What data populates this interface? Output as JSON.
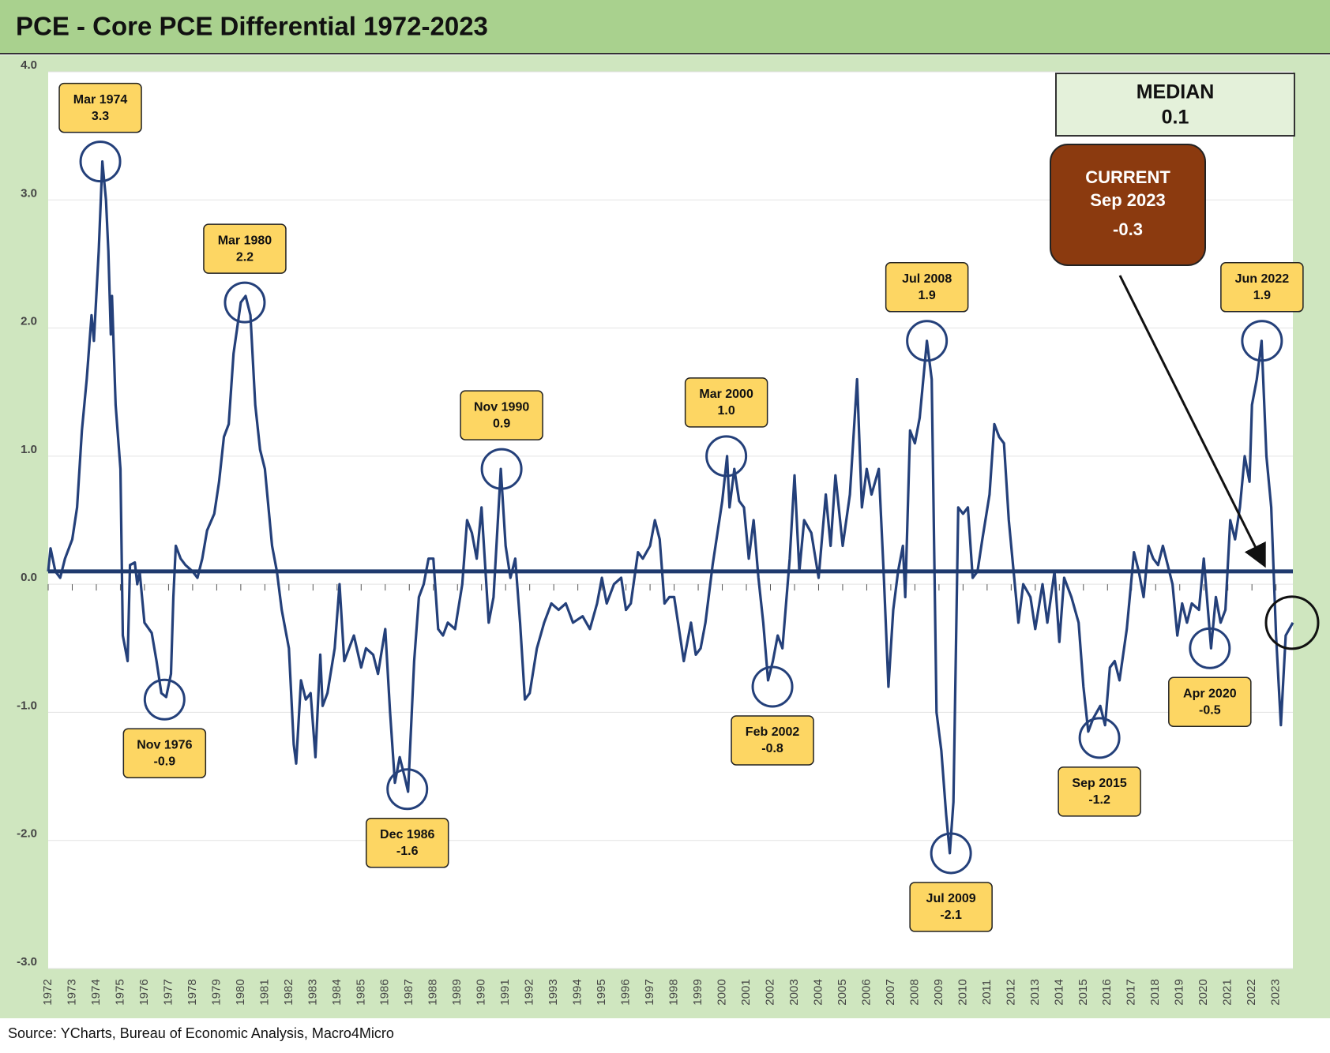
{
  "chart_data": {
    "type": "line",
    "title": "PCE - Core PCE Differential 1972-2023",
    "source": "Source: YCharts, Bureau of Economic Analysis, Macro4Micro",
    "ylim": [
      -3,
      4
    ],
    "yticks": [
      {
        "value": -3,
        "label": "-3.0"
      },
      {
        "value": -2,
        "label": "-2.0"
      },
      {
        "value": -1,
        "label": "-1.0"
      },
      {
        "value": 0,
        "label": "0.0"
      },
      {
        "value": 1,
        "label": "1.0"
      },
      {
        "value": 2,
        "label": "2.0"
      },
      {
        "value": 3,
        "label": "3.0"
      },
      {
        "value": 4,
        "label": "4.0"
      }
    ],
    "xlim": [
      1972,
      2023.7
    ],
    "xticks": [
      1972,
      1973,
      1974,
      1975,
      1976,
      1977,
      1978,
      1979,
      1980,
      1981,
      1982,
      1983,
      1984,
      1985,
      1986,
      1987,
      1988,
      1989,
      1990,
      1991,
      1992,
      1993,
      1994,
      1995,
      1996,
      1997,
      1998,
      1999,
      2000,
      2001,
      2002,
      2003,
      2004,
      2005,
      2006,
      2007,
      2008,
      2009,
      2010,
      2011,
      2012,
      2013,
      2014,
      2015,
      2016,
      2017,
      2018,
      2019,
      2020,
      2021,
      2022,
      2023
    ],
    "grid": true,
    "series": [
      {
        "color": "#24407a",
        "x": [
          1972.0,
          1972.1,
          1972.3,
          1972.5,
          1972.7,
          1973.0,
          1973.2,
          1973.4,
          1973.6,
          1973.8,
          1973.9,
          1974.1,
          1974.25,
          1974.4,
          1974.5,
          1974.6,
          1974.65,
          1974.8,
          1975.0,
          1975.1,
          1975.3,
          1975.4,
          1975.6,
          1975.7,
          1975.8,
          1976.0,
          1976.3,
          1976.5,
          1976.7,
          1976.9,
          1977.1,
          1977.2,
          1977.3,
          1977.5,
          1977.7,
          1978.0,
          1978.2,
          1978.4,
          1978.6,
          1978.9,
          1979.1,
          1979.3,
          1979.5,
          1979.7,
          1980.0,
          1980.2,
          1980.4,
          1980.6,
          1980.8,
          1981.0,
          1981.1,
          1981.3,
          1981.5,
          1981.7,
          1982.0,
          1982.2,
          1982.3,
          1982.5,
          1982.7,
          1982.9,
          1983.1,
          1983.3,
          1983.4,
          1983.6,
          1983.9,
          1984.1,
          1984.3,
          1984.5,
          1984.7,
          1985.0,
          1985.2,
          1985.5,
          1985.7,
          1986.0,
          1986.2,
          1986.4,
          1986.6,
          1986.8,
          1986.95,
          1987.2,
          1987.4,
          1987.6,
          1987.8,
          1988.0,
          1988.2,
          1988.4,
          1988.6,
          1988.9,
          1989.2,
          1989.4,
          1989.6,
          1989.8,
          1990.0,
          1990.3,
          1990.5,
          1990.8,
          1991.0,
          1991.2,
          1991.4,
          1991.6,
          1991.8,
          1992.0,
          1992.3,
          1992.6,
          1992.9,
          1993.2,
          1993.5,
          1993.8,
          1994.2,
          1994.5,
          1994.8,
          1995.0,
          1995.2,
          1995.5,
          1995.8,
          1996.0,
          1996.2,
          1996.5,
          1996.7,
          1997.0,
          1997.2,
          1997.4,
          1997.6,
          1997.8,
          1998.0,
          1998.2,
          1998.4,
          1998.7,
          1998.9,
          1999.1,
          1999.3,
          1999.6,
          1999.8,
          2000.0,
          2000.2,
          2000.3,
          2000.5,
          2000.7,
          2000.9,
          2001.1,
          2001.3,
          2001.5,
          2001.7,
          2001.9,
          2002.1,
          2002.3,
          2002.5,
          2002.8,
          2003.0,
          2003.2,
          2003.4,
          2003.7,
          2004.0,
          2004.3,
          2004.5,
          2004.7,
          2005.0,
          2005.3,
          2005.6,
          2005.8,
          2006.0,
          2006.2,
          2006.5,
          2006.7,
          2006.9,
          2007.1,
          2007.3,
          2007.5,
          2007.6,
          2007.8,
          2008.0,
          2008.2,
          2008.5,
          2008.7,
          2008.9,
          2009.1,
          2009.3,
          2009.45,
          2009.6,
          2009.8,
          2010.0,
          2010.2,
          2010.4,
          2010.6,
          2010.8,
          2011.1,
          2011.3,
          2011.5,
          2011.7,
          2011.9,
          2012.1,
          2012.3,
          2012.5,
          2012.8,
          2013.0,
          2013.3,
          2013.5,
          2013.8,
          2014.0,
          2014.2,
          2014.5,
          2014.8,
          2015.0,
          2015.2,
          2015.4,
          2015.7,
          2015.9,
          2016.1,
          2016.3,
          2016.5,
          2016.8,
          2017.1,
          2017.3,
          2017.5,
          2017.7,
          2017.9,
          2018.1,
          2018.3,
          2018.5,
          2018.7,
          2018.9,
          2019.1,
          2019.3,
          2019.5,
          2019.8,
          2020.0,
          2020.3,
          2020.5,
          2020.7,
          2020.9,
          2021.1,
          2021.3,
          2021.5,
          2021.7,
          2021.9,
          2022.0,
          2022.2,
          2022.4,
          2022.6,
          2022.8,
          2023.0,
          2023.2,
          2023.4,
          2023.7
        ],
        "values": [
          0.1,
          0.28,
          0.1,
          0.05,
          0.2,
          0.35,
          0.6,
          1.2,
          1.6,
          2.1,
          1.9,
          2.6,
          3.3,
          3.0,
          2.6,
          1.95,
          2.25,
          1.4,
          0.9,
          -0.4,
          -0.6,
          0.15,
          0.17,
          0.0,
          0.1,
          -0.3,
          -0.38,
          -0.6,
          -0.85,
          -0.88,
          -0.7,
          -0.1,
          0.3,
          0.2,
          0.15,
          0.1,
          0.05,
          0.2,
          0.42,
          0.55,
          0.8,
          1.15,
          1.25,
          1.8,
          2.2,
          2.25,
          2.1,
          1.4,
          1.05,
          0.9,
          0.7,
          0.3,
          0.1,
          -0.2,
          -0.5,
          -1.25,
          -1.4,
          -0.75,
          -0.9,
          -0.85,
          -1.35,
          -0.55,
          -0.95,
          -0.85,
          -0.5,
          0.0,
          -0.6,
          -0.5,
          -0.4,
          -0.65,
          -0.5,
          -0.55,
          -0.7,
          -0.35,
          -1.0,
          -1.55,
          -1.35,
          -1.5,
          -1.62,
          -0.6,
          -0.1,
          0.0,
          0.2,
          0.2,
          -0.35,
          -0.4,
          -0.3,
          -0.35,
          0.0,
          0.5,
          0.4,
          0.2,
          0.6,
          -0.3,
          -0.1,
          0.9,
          0.3,
          0.05,
          0.2,
          -0.3,
          -0.9,
          -0.85,
          -0.5,
          -0.3,
          -0.15,
          -0.2,
          -0.15,
          -0.3,
          -0.25,
          -0.35,
          -0.15,
          0.05,
          -0.15,
          0.0,
          0.05,
          -0.2,
          -0.15,
          0.25,
          0.2,
          0.3,
          0.5,
          0.35,
          -0.15,
          -0.1,
          -0.1,
          -0.35,
          -0.6,
          -0.3,
          -0.55,
          -0.5,
          -0.3,
          0.15,
          0.4,
          0.65,
          1.0,
          0.6,
          0.9,
          0.65,
          0.6,
          0.2,
          0.5,
          0.05,
          -0.3,
          -0.75,
          -0.6,
          -0.4,
          -0.5,
          0.2,
          0.85,
          0.1,
          0.5,
          0.4,
          0.05,
          0.7,
          0.3,
          0.85,
          0.3,
          0.7,
          1.6,
          0.6,
          0.9,
          0.7,
          0.9,
          0.1,
          -0.8,
          -0.2,
          0.1,
          0.3,
          -0.1,
          1.2,
          1.1,
          1.3,
          1.9,
          1.6,
          -1.0,
          -1.3,
          -1.8,
          -2.1,
          -1.7,
          0.6,
          0.55,
          0.6,
          0.05,
          0.1,
          0.35,
          0.7,
          1.25,
          1.15,
          1.1,
          0.5,
          0.1,
          -0.3,
          0.0,
          -0.1,
          -0.35,
          0.0,
          -0.3,
          0.1,
          -0.45,
          0.05,
          -0.1,
          -0.3,
          -0.8,
          -1.15,
          -1.05,
          -0.95,
          -1.1,
          -0.65,
          -0.6,
          -0.75,
          -0.35,
          0.25,
          0.1,
          -0.1,
          0.3,
          0.2,
          0.15,
          0.3,
          0.15,
          0.0,
          -0.4,
          -0.15,
          -0.3,
          -0.15,
          -0.2,
          0.2,
          -0.5,
          -0.1,
          -0.3,
          -0.2,
          0.5,
          0.35,
          0.6,
          1.0,
          0.8,
          1.4,
          1.6,
          1.9,
          1.0,
          0.6,
          -0.4,
          -1.1,
          -0.4,
          -0.3
        ]
      }
    ],
    "median": {
      "label": "MEDIAN",
      "value": 0.1,
      "color": "#1f3a6e"
    },
    "current": {
      "label": "CURRENT",
      "date": "Sep 2023",
      "value": -0.3,
      "color": "#8b3a0f"
    },
    "annotations": [
      {
        "label": "Mar 1974",
        "value": 3.3
      },
      {
        "label": "Nov 1976",
        "value": -0.9
      },
      {
        "label": "Mar 1980",
        "value": 2.2
      },
      {
        "label": "Dec 1986",
        "value": -1.6
      },
      {
        "label": "Nov 1990",
        "value": 0.9
      },
      {
        "label": "Mar 2000",
        "value": 1.0,
        "value_label": "1.0"
      },
      {
        "label": "Feb 2002",
        "value": -0.8
      },
      {
        "label": "Jul 2008",
        "value": 1.9
      },
      {
        "label": "Jul 2009",
        "value": -2.1
      },
      {
        "label": "Sep 2015",
        "value": -1.2
      },
      {
        "label": "Apr 2020",
        "value": -0.5
      },
      {
        "label": "Jun 2022",
        "value": 1.9
      }
    ]
  }
}
